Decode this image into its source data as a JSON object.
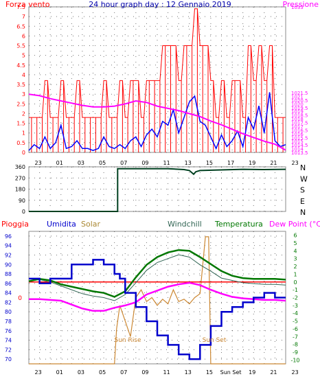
{
  "title": "24 hour graph day : 12 Gennaio 2019",
  "colors": {
    "wind": "#ff0000",
    "gust": "#0000ff",
    "pressure": "#ff00ff",
    "direction": "#004020",
    "humidity": "#0000cc",
    "solar": "#cc8833",
    "windchill": "#336655",
    "temperature": "#007700",
    "dewpoint": "#ff00ff",
    "rain": "#ff0000",
    "grid": "#000000",
    "frame": "#8a8a8a"
  },
  "chart_data": [
    {
      "type": "line",
      "name": "wind-pressure-panel",
      "left_axis_label": "Forza vento",
      "right_axis_label": "Pressione",
      "ylim_left": [
        0,
        7.5
      ],
      "ylim_right": [
        1013.5,
        1033
      ],
      "left_ticks": [
        "0",
        "0.5",
        "1",
        "1.5",
        "2",
        "2.5",
        "3",
        "3.5",
        "4",
        "4.5",
        "5",
        "5.5",
        "6",
        "6.5",
        "7",
        "7.5"
      ],
      "right_ticks": [
        "1013.5",
        "1014",
        "1014.5",
        "1015",
        "1015.5",
        "1016",
        "1016.5",
        "1017",
        "1017.5",
        "1018",
        "1018.5",
        "1019",
        "1019.5",
        "1020",
        "1020.5",
        "1021",
        "1021.5",
        "1033"
      ],
      "x_tick_labels": [
        "23",
        "01",
        "03",
        "05",
        "07",
        "09",
        "11",
        "13",
        "15",
        "17",
        "19",
        "21",
        "23"
      ],
      "pressure": {
        "x": [
          0,
          1,
          2,
          3,
          4,
          5,
          6,
          7,
          8,
          9,
          10,
          11,
          12,
          13,
          14,
          15,
          16,
          17,
          18,
          19,
          20,
          21,
          22,
          23,
          24
        ],
        "y": [
          1021.3,
          1021.1,
          1020.7,
          1020.4,
          1020.1,
          1019.8,
          1019.6,
          1019.6,
          1019.7,
          1020.0,
          1020.4,
          1020.2,
          1019.7,
          1019.4,
          1019.1,
          1018.7,
          1018.3,
          1017.7,
          1017.2,
          1016.6,
          1016.0,
          1015.5,
          1015.0,
          1014.6,
          1013.8
        ]
      },
      "wind_speed": {
        "x": [
          0,
          0.5,
          1,
          1.5,
          2,
          2.5,
          3,
          3.5,
          4,
          4.5,
          5,
          5.5,
          6,
          6.5,
          7,
          7.5,
          8,
          8.5,
          9,
          9.5,
          10,
          10.5,
          11,
          11.5,
          12,
          12.5,
          13,
          13.5,
          14,
          14.5,
          15,
          15.5,
          16,
          16.5,
          17,
          17.5,
          18,
          18.5,
          19,
          19.5,
          20,
          20.5,
          21,
          21.5,
          22,
          22.5,
          23,
          23.5,
          24
        ],
        "y": [
          1.8,
          1.8,
          1.8,
          3.7,
          1.8,
          1.8,
          3.7,
          1.8,
          1.8,
          3.7,
          1.8,
          1.8,
          1.8,
          1.8,
          3.7,
          1.8,
          1.8,
          3.7,
          1.8,
          3.7,
          3.7,
          1.8,
          3.7,
          3.7,
          3.7,
          5.5,
          5.5,
          5.5,
          3.7,
          5.5,
          5.5,
          7.4,
          5.5,
          5.5,
          3.7,
          1.8,
          3.7,
          1.8,
          3.7,
          3.7,
          1.8,
          5.5,
          3.7,
          5.5,
          3.7,
          5.5,
          1.8,
          1.8,
          1.8
        ]
      },
      "wind_gust": {
        "x": [
          0,
          0.5,
          1,
          1.5,
          2,
          2.5,
          3,
          3.5,
          4,
          4.5,
          5,
          5.5,
          6,
          6.5,
          7,
          7.5,
          8,
          8.5,
          9,
          9.5,
          10,
          10.5,
          11,
          11.5,
          12,
          12.5,
          13,
          13.5,
          14,
          14.5,
          15,
          15.5,
          16,
          16.5,
          17,
          17.5,
          18,
          18.5,
          19,
          19.5,
          20,
          20.5,
          21,
          21.5,
          22,
          22.5,
          23,
          23.5,
          24
        ],
        "y": [
          0.1,
          0.4,
          0.2,
          0.8,
          0.2,
          0.5,
          1.4,
          0.2,
          0.3,
          0.6,
          0.2,
          0.2,
          0.1,
          0.2,
          0.8,
          0.3,
          0.2,
          0.4,
          0.2,
          0.6,
          0.8,
          0.3,
          0.9,
          1.2,
          0.8,
          1.6,
          1.4,
          2.2,
          1.0,
          1.8,
          2.6,
          2.9,
          1.6,
          1.4,
          0.8,
          0.2,
          0.9,
          0.3,
          0.6,
          1.1,
          0.3,
          1.8,
          1.2,
          2.4,
          1.0,
          3.1,
          0.6,
          0.3,
          0.4
        ]
      }
    },
    {
      "type": "line",
      "name": "wind-direction-panel",
      "left_ticks": [
        "0",
        "90",
        "180",
        "270",
        "360"
      ],
      "ylim": [
        0,
        360
      ],
      "right_labels": [
        "N",
        "W",
        "S",
        "E",
        "N"
      ],
      "direction": {
        "x": [
          0,
          8.3,
          8.3,
          11,
          13,
          14.5,
          15,
          15.4,
          15.6,
          16,
          18,
          20,
          22,
          24
        ],
        "y": [
          0,
          0,
          345,
          345,
          345,
          338,
          330,
          300,
          320,
          330,
          335,
          340,
          338,
          340
        ]
      }
    },
    {
      "type": "line",
      "name": "temperature-humidity-panel",
      "legend": [
        "Pioggia",
        "Umidita",
        "Solar",
        "Windchill",
        "Temperatura",
        "Dew Point (°C)"
      ],
      "left_ticks": [
        "70",
        "72",
        "74",
        "76",
        "78",
        "80",
        "82",
        "84",
        "86",
        "88",
        "90",
        "92",
        "94",
        "96"
      ],
      "ylim_left": [
        69,
        97
      ],
      "right_ticks": [
        "-10",
        "-9",
        "-8",
        "-7",
        "-6",
        "-5",
        "-4",
        "-3",
        "-2",
        "-1",
        "0",
        "1",
        "2",
        "3",
        "4",
        "5",
        "6"
      ],
      "ylim_right": [
        -10.5,
        6.5
      ],
      "zero_label": "0",
      "annotations": [
        "Sun Rise",
        "Sun Set"
      ],
      "x_tick_labels": [
        "23",
        "01",
        "03",
        "05",
        "07",
        "09",
        "11",
        "13",
        "15",
        "Sun Set",
        "19",
        "21",
        "23"
      ],
      "humidity": {
        "x": [
          0,
          1,
          2,
          3,
          4,
          5,
          6,
          7,
          7.5,
          8,
          8.5,
          9,
          10,
          11,
          12,
          13,
          14,
          15,
          16,
          17,
          18,
          19,
          20,
          21,
          22,
          23,
          24
        ],
        "y": [
          87,
          86,
          87,
          87,
          90,
          90,
          91,
          90,
          90,
          88,
          87,
          84,
          81,
          78,
          75,
          73,
          71,
          70,
          73,
          77,
          80,
          81,
          82,
          83,
          84,
          83,
          83
        ]
      },
      "temperature": {
        "x": [
          0,
          1,
          2,
          3,
          4,
          5,
          6,
          7,
          8,
          9,
          10,
          11,
          12,
          13,
          14,
          15,
          16,
          17,
          18,
          19,
          20,
          21,
          22,
          23,
          24
        ],
        "y": [
          0.1,
          0.4,
          0.2,
          -0.3,
          -0.6,
          -0.9,
          -1.2,
          -1.4,
          -1.9,
          -1.2,
          0.6,
          2.2,
          3.2,
          3.8,
          4.1,
          4.0,
          3.2,
          2.3,
          1.4,
          0.8,
          0.5,
          0.4,
          0.4,
          0.4,
          0.3
        ]
      },
      "windchill": {
        "x": [
          0,
          1,
          2,
          3,
          4,
          5,
          6,
          7,
          8,
          9,
          10,
          11,
          12,
          13,
          14,
          15,
          16,
          17,
          18,
          19,
          20,
          21,
          22,
          23,
          24
        ],
        "y": [
          0.1,
          0.3,
          0.0,
          -0.5,
          -1.0,
          -1.5,
          -1.8,
          -2.0,
          -2.4,
          -1.6,
          -0.1,
          1.5,
          2.5,
          3.0,
          3.5,
          3.2,
          2.2,
          1.4,
          0.5,
          0.2,
          -0.1,
          -0.2,
          -0.3,
          -0.3,
          -0.4
        ]
      },
      "dewpoint": {
        "x": [
          0,
          1,
          2,
          3,
          4,
          5,
          6,
          7,
          8,
          9,
          10,
          11,
          12,
          13,
          14,
          15,
          16,
          17,
          18,
          19,
          20,
          21,
          22,
          23,
          24
        ],
        "y": [
          -2.2,
          -2.2,
          -2.3,
          -2.4,
          -2.9,
          -3.4,
          -3.7,
          -3.7,
          -3.3,
          -3.0,
          -2.6,
          -1.6,
          -1.1,
          -0.6,
          -0.3,
          -0.1,
          -0.4,
          -1.0,
          -1.5,
          -1.9,
          -2.1,
          -2.2,
          -2.3,
          -2.3,
          -2.4
        ]
      },
      "solar": {
        "x": [
          0,
          8.0,
          8.2,
          8.5,
          9,
          9.5,
          10,
          10.5,
          11,
          11.5,
          12,
          12.5,
          13,
          13.5,
          14,
          14.5,
          15,
          15.5,
          16,
          16.5,
          16.8,
          17,
          24
        ],
        "y": [
          -10.5,
          -10.5,
          -6.0,
          -3.0,
          -5.0,
          -7.0,
          -2.0,
          -1.0,
          -2.5,
          -2.0,
          -3.0,
          -2.2,
          -2.8,
          -1.0,
          -2.5,
          -2.2,
          -2.8,
          -2.0,
          -1.5,
          5.8,
          5.8,
          -10.5,
          -10.5
        ]
      },
      "rain": {
        "x": [
          0,
          24
        ],
        "y": [
          0,
          0
        ]
      }
    }
  ]
}
